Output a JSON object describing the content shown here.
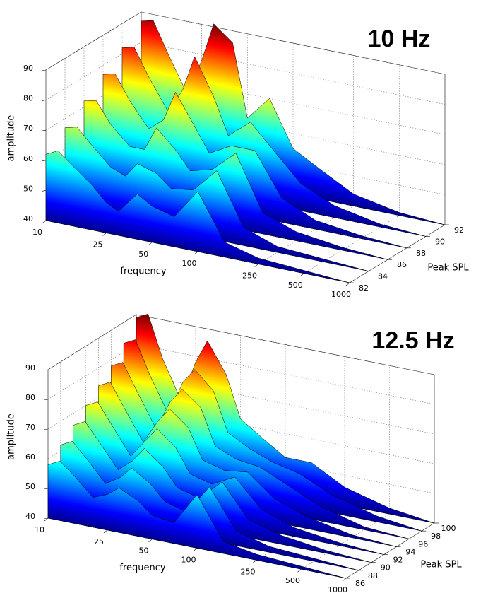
{
  "chart_data": [
    {
      "type": "waterfall3d",
      "title": "10 Hz",
      "xlabel": "frequency",
      "ylabel": "Peak SPL",
      "zlabel": "amplitude",
      "xscale": "log",
      "xlim": [
        10,
        1000
      ],
      "xticks": [
        10,
        25,
        50,
        100,
        250,
        500,
        1000
      ],
      "ylim": [
        82,
        92
      ],
      "yticks": [
        82,
        84,
        86,
        88,
        90,
        92
      ],
      "zlim": [
        40,
        90
      ],
      "zticks": [
        40,
        50,
        60,
        70,
        80,
        90
      ],
      "grid": true,
      "x": [
        10,
        12,
        15,
        20,
        25,
        30,
        40,
        50,
        70,
        100,
        150,
        250,
        500,
        1000
      ],
      "series": [
        {
          "y": 82,
          "values": [
            62,
            64,
            60,
            55,
            50,
            48,
            55,
            52,
            50,
            60,
            45,
            42,
            41,
            40
          ]
        },
        {
          "y": 84,
          "values": [
            67,
            68,
            63,
            57,
            55,
            60,
            58,
            54,
            55,
            63,
            46,
            42,
            41,
            40
          ]
        },
        {
          "y": 86,
          "values": [
            72,
            73,
            66,
            60,
            60,
            68,
            62,
            56,
            58,
            65,
            47,
            43,
            41,
            40
          ]
        },
        {
          "y": 88,
          "values": [
            77,
            78,
            70,
            62,
            66,
            76,
            66,
            58,
            62,
            62,
            48,
            43,
            41,
            40
          ]
        },
        {
          "y": 90,
          "values": [
            82,
            83,
            74,
            64,
            72,
            84,
            72,
            60,
            66,
            58,
            49,
            44,
            41,
            40
          ]
        },
        {
          "y": 92,
          "values": [
            87,
            88,
            78,
            66,
            78,
            91,
            86,
            62,
            70,
            55,
            50,
            44,
            41,
            40
          ]
        }
      ]
    },
    {
      "type": "waterfall3d",
      "title": "12.5 Hz",
      "xlabel": "frequency",
      "ylabel": "Peak SPL",
      "zlabel": "amplitude",
      "xscale": "log",
      "xlim": [
        10,
        1000
      ],
      "xticks": [
        10,
        25,
        50,
        100,
        250,
        500,
        1000
      ],
      "ylim": [
        86,
        100
      ],
      "yticks": [
        86,
        88,
        90,
        92,
        94,
        96,
        98,
        100
      ],
      "zlim": [
        40,
        90
      ],
      "zticks": [
        40,
        50,
        60,
        70,
        80,
        90
      ],
      "grid": true,
      "x": [
        10,
        12,
        15,
        20,
        25,
        30,
        40,
        50,
        70,
        100,
        150,
        250,
        500,
        1000
      ],
      "series": [
        {
          "y": 86,
          "values": [
            58,
            60,
            56,
            50,
            52,
            55,
            52,
            48,
            47,
            58,
            44,
            42,
            41,
            40
          ]
        },
        {
          "y": 88,
          "values": [
            62,
            64,
            59,
            52,
            55,
            59,
            55,
            50,
            48,
            58,
            45,
            42,
            41,
            40
          ]
        },
        {
          "y": 90,
          "values": [
            66,
            68,
            62,
            54,
            58,
            63,
            58,
            52,
            50,
            57,
            46,
            43,
            41,
            40
          ]
        },
        {
          "y": 92,
          "values": [
            70,
            72,
            65,
            56,
            62,
            67,
            62,
            54,
            52,
            56,
            47,
            43,
            41,
            40
          ]
        },
        {
          "y": 94,
          "values": [
            74,
            76,
            68,
            58,
            66,
            71,
            66,
            56,
            54,
            55,
            48,
            44,
            41,
            40
          ]
        },
        {
          "y": 96,
          "values": [
            78,
            80,
            71,
            60,
            70,
            75,
            70,
            58,
            55,
            54,
            50,
            45,
            41,
            40
          ]
        },
        {
          "y": 98,
          "values": [
            83,
            85,
            74,
            62,
            74,
            79,
            73,
            60,
            56,
            53,
            51,
            46,
            42,
            40
          ]
        },
        {
          "y": 100,
          "values": [
            89,
            91,
            77,
            64,
            78,
            86,
            76,
            62,
            57,
            52,
            52,
            46,
            42,
            40
          ]
        }
      ]
    }
  ]
}
